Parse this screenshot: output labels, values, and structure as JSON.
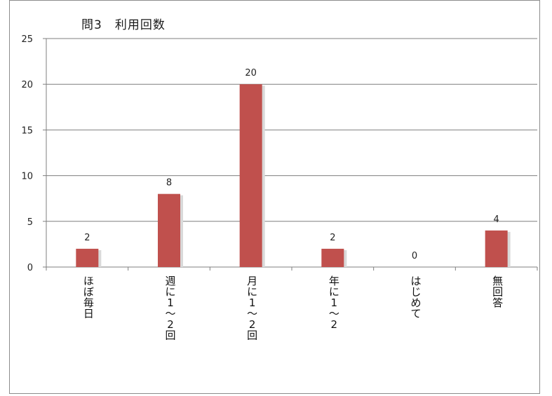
{
  "chart_data": {
    "type": "bar",
    "title": "問3　利用回数",
    "xlabel": "",
    "ylabel": "",
    "ylim": [
      0,
      25
    ],
    "yticks": [
      0,
      5,
      10,
      15,
      20,
      25
    ],
    "grid": true,
    "legend": "none",
    "categories": [
      "ほぼ毎日",
      "週に1〜2回",
      "月に1〜2回",
      "年に1〜2",
      "はじめて",
      "無回答"
    ],
    "category_lines": [
      [
        "ほ",
        "ぼ",
        "毎",
        "日"
      ],
      [
        "週",
        "に",
        "1",
        "〜",
        "2",
        "回"
      ],
      [
        "月",
        "に",
        "1",
        "〜",
        "2",
        "回"
      ],
      [
        "年",
        "に",
        "1",
        "〜",
        "2"
      ],
      [
        "は",
        "じ",
        "め",
        "て"
      ],
      [
        "無",
        "回",
        "答"
      ]
    ],
    "values": [
      2,
      8,
      20,
      2,
      0,
      4
    ],
    "data_labels": [
      "2",
      "8",
      "20",
      "2",
      "0",
      "4"
    ],
    "colors": {
      "bar": "#c0504d",
      "bar_shadow": "#d9d9d9",
      "grid": "#7f7f7f",
      "axis": "#7f7f7f"
    }
  }
}
